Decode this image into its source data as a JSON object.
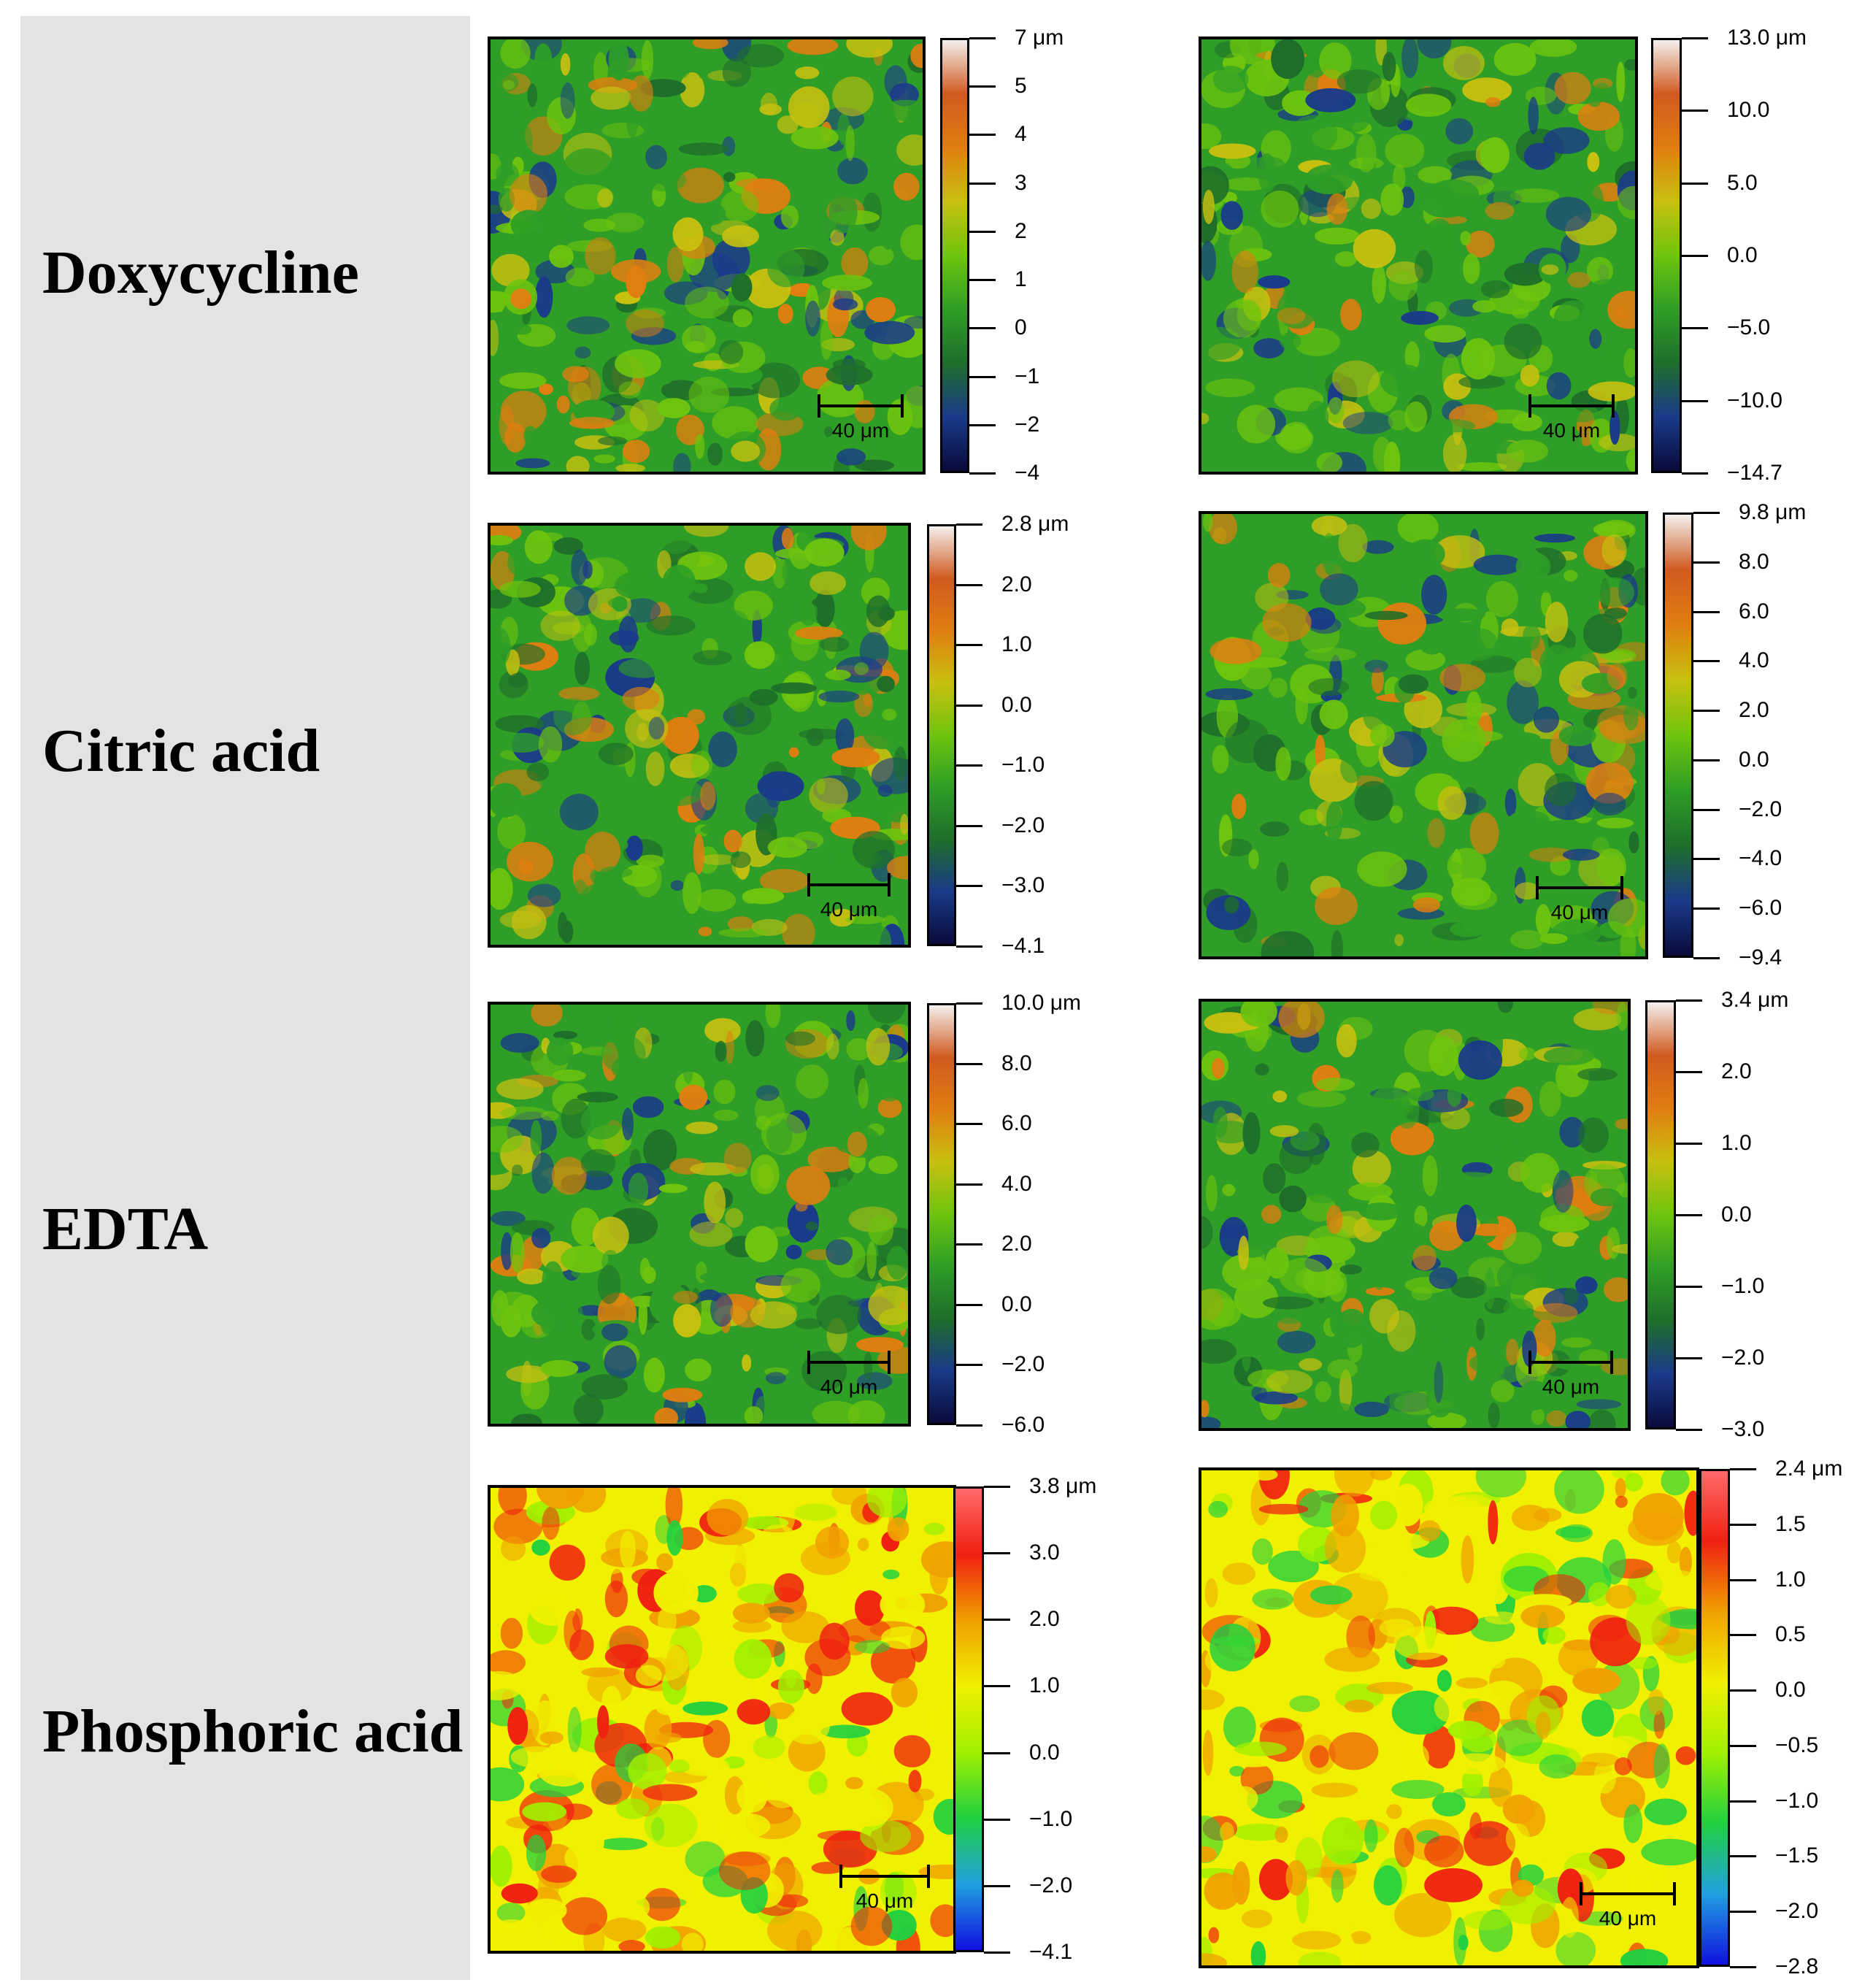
{
  "labels": {
    "doxycycline": "Doxycycline",
    "citric": "Citric acid",
    "edta": "EDTA",
    "phosphoric": "Phosphoric acid"
  },
  "scale_bar_text": "40 μm",
  "color_scales": {
    "green_style": [
      "#0a0a3a",
      "#1a3a8a",
      "#1e6e2a",
      "#2e9e26",
      "#6ec40e",
      "#c8c010",
      "#e07e10",
      "#d05a20",
      "#f4f0ee"
    ],
    "rainbow_style": [
      "#1010e0",
      "#20a0e0",
      "#20d040",
      "#a0f000",
      "#f0f000",
      "#f0a000",
      "#f02010",
      "#ff6a6a"
    ]
  },
  "panels": [
    {
      "id": "dox-left",
      "style": "green",
      "ticks": [
        "7 μm",
        "5",
        "4",
        "3",
        "2",
        "1",
        "0",
        "−1",
        "−2",
        "−4"
      ]
    },
    {
      "id": "dox-right",
      "style": "green",
      "ticks": [
        "13.0 μm",
        "10.0",
        "5.0",
        "0.0",
        "−5.0",
        "−10.0",
        "−14.7"
      ]
    },
    {
      "id": "cit-left",
      "style": "green",
      "ticks": [
        "2.8 μm",
        "2.0",
        "1.0",
        "0.0",
        "−1.0",
        "−2.0",
        "−3.0",
        "−4.1"
      ]
    },
    {
      "id": "cit-right",
      "style": "green",
      "ticks": [
        "9.8 μm",
        "8.0",
        "6.0",
        "4.0",
        "2.0",
        "0.0",
        "−2.0",
        "−4.0",
        "−6.0",
        "−9.4"
      ]
    },
    {
      "id": "edta-left",
      "style": "green",
      "ticks": [
        "10.0 μm",
        "8.0",
        "6.0",
        "4.0",
        "2.0",
        "0.0",
        "−2.0",
        "−6.0"
      ]
    },
    {
      "id": "edta-right",
      "style": "green",
      "ticks": [
        "3.4 μm",
        "2.0",
        "1.0",
        "0.0",
        "−1.0",
        "−2.0",
        "−3.0"
      ]
    },
    {
      "id": "phos-left",
      "style": "rainbow",
      "ticks": [
        "3.8 μm",
        "3.0",
        "2.0",
        "1.0",
        "0.0",
        "−1.0",
        "−2.0",
        "−4.1"
      ]
    },
    {
      "id": "phos-right",
      "style": "rainbow",
      "ticks": [
        "2.4 μm",
        "1.5",
        "1.0",
        "0.5",
        "0.0",
        "−0.5",
        "−1.0",
        "−1.5",
        "−2.0",
        "−2.8"
      ]
    }
  ]
}
